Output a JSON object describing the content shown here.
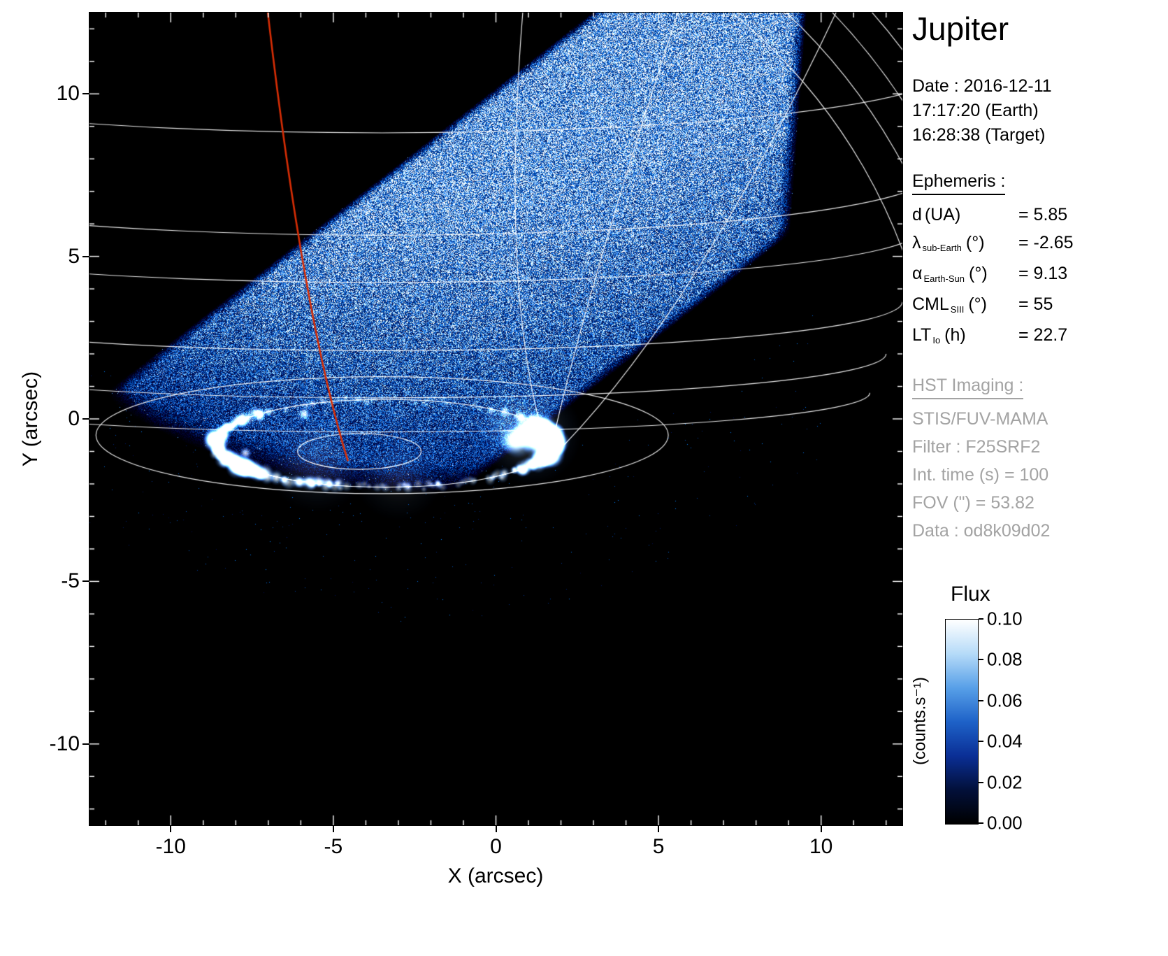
{
  "title": "Jupiter",
  "observation": {
    "date": "Date : 2016-12-11",
    "earth_time": "17:17:20 (Earth)",
    "target_time": "16:28:38 (Target)"
  },
  "ephemeris": {
    "heading": "Ephemeris :",
    "rows": [
      {
        "sym": "d",
        "sub": "",
        "unit": "(UA)",
        "val": "= 5.85"
      },
      {
        "sym": "λ",
        "sub": "sub-Earth",
        "unit": "(°)",
        "val": "= -2.65"
      },
      {
        "sym": "α",
        "sub": "Earth-Sun",
        "unit": "(°)",
        "val": "= 9.13"
      },
      {
        "sym": "CML",
        "sub": "SIII",
        "unit": "(°)",
        "val": "= 55"
      },
      {
        "sym": "LT",
        "sub": "Io",
        "unit": "(h)",
        "val": "= 22.7"
      }
    ]
  },
  "hst_imaging": {
    "heading": "HST Imaging :",
    "rows": [
      "STIS/FUV-MAMA",
      "Filter : F25SRF2",
      "Int. time (s) = 100",
      "FOV (\") = 53.82",
      "Data : od8k09d02"
    ]
  },
  "colorbar": {
    "title": "Flux",
    "unit": "(counts.s⁻¹)",
    "tick_labels": [
      "0.10",
      "0.08",
      "0.06",
      "0.04",
      "0.02",
      "0.00"
    ],
    "gradient": [
      "#000000",
      "#02103a",
      "#0a2f96",
      "#1e62c8",
      "#58a0e8",
      "#b6dbf8",
      "#ffffff"
    ]
  },
  "axes": {
    "xlabel": "X (arcsec)",
    "ylabel": "Y (arcsec)",
    "xtick_labels": [
      "-10",
      "-5",
      "0",
      "5",
      "10"
    ],
    "xtick_values": [
      -10,
      -5,
      0,
      5,
      10
    ],
    "ytick_labels": [
      "10",
      "5",
      "0",
      "-5",
      "-10"
    ],
    "ytick_values": [
      10,
      5,
      0,
      -5,
      -10
    ]
  },
  "chart_data": {
    "type": "heatmap",
    "title": "Jupiter",
    "xlabel": "X (arcsec)",
    "ylabel": "Y (arcsec)",
    "xlim": [
      -12.5,
      12.5
    ],
    "ylim": [
      -12.5,
      12.5
    ],
    "xticks": [
      -10,
      -5,
      0,
      5,
      10
    ],
    "yticks": [
      -10,
      -5,
      0,
      5,
      10
    ],
    "colorbar_label": "Flux (counts.s⁻¹)",
    "flux_range": [
      0.0,
      0.1
    ],
    "flux_ticks": [
      0.1,
      0.08,
      0.06,
      0.04,
      0.02,
      0.0
    ],
    "colormap": "black-blue-white",
    "description": "HST/STIS far-UV image of Jupiter's north polar region: tilted square MAMA detector field filled with speckled blue dayglow noise, bright white main auroral oval near (-3.4,-0.75), white planetocentric graticule lines, red meridian line crossing the field",
    "features": {
      "detector_band": {
        "center": [
          -1.4,
          3.3
        ],
        "angle_deg": 38,
        "half_width_arcsec": 4.56,
        "left_extent_du": -9.9,
        "right_edge_x": 9.05,
        "limb_poly": [
          0.0305,
          0.15,
          -2.088
        ]
      },
      "auroral_oval": {
        "center": [
          -3.4,
          -0.75
        ],
        "rx": 5.2,
        "ry": 1.35
      },
      "io_footprint": [
        -5.9,
        0.15
      ],
      "red_meridian": {
        "start": [
          -7.05,
          12.8
        ],
        "ctrl": [
          -5.95,
          3.2
        ],
        "end": [
          -4.55,
          -1.3
        ],
        "color": "#d62d05"
      }
    }
  }
}
